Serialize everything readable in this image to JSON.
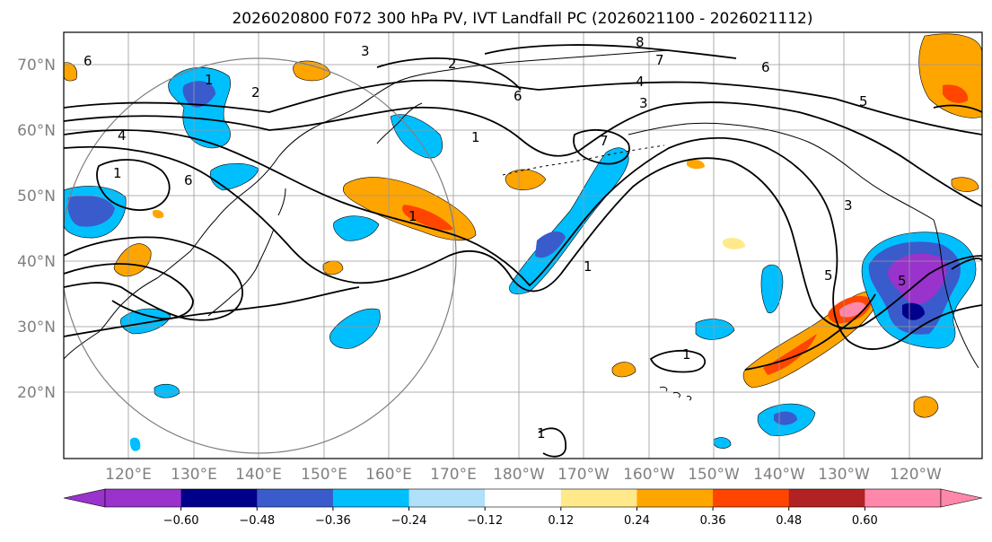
{
  "title": "2026020800 F072 300 hPa PV, IVT Landfall PC (2026021100 - 2026021112)",
  "lat_labels": [
    "70°N",
    "60°N",
    "50°N",
    "40°N",
    "30°N",
    "20°N"
  ],
  "lon_labels": [
    "120°E",
    "130°E",
    "140°E",
    "150°E",
    "160°E",
    "170°E",
    "180°W",
    "170°W",
    "160°W",
    "150°W",
    "140°W",
    "130°W",
    "120°W"
  ],
  "colorbar": {
    "colors": [
      "#9933CC",
      "#00008B",
      "#3A5BCC",
      "#00BFFF",
      "#B0E0FA",
      "#FFFFFF",
      "#FFE98A",
      "#FFA500",
      "#FF4500",
      "#B22222",
      "#FF88AA"
    ],
    "ticks": [
      "−0.60",
      "−0.48",
      "−0.36",
      "−0.24",
      "−0.12",
      "0.12",
      "0.24",
      "0.36",
      "0.48",
      "0.60"
    ]
  },
  "contour_labels": [
    "6",
    "3",
    "2",
    "8",
    "7",
    "4",
    "5",
    "6",
    "1",
    "2",
    "4",
    "1",
    "6",
    "1",
    "6",
    "1",
    "7",
    "3",
    "1",
    "3",
    "5",
    "5",
    "1",
    "1"
  ],
  "colors": {
    "contour": "#000000",
    "grid": "#999999",
    "coast": "#000000",
    "circle": "#808080"
  }
}
